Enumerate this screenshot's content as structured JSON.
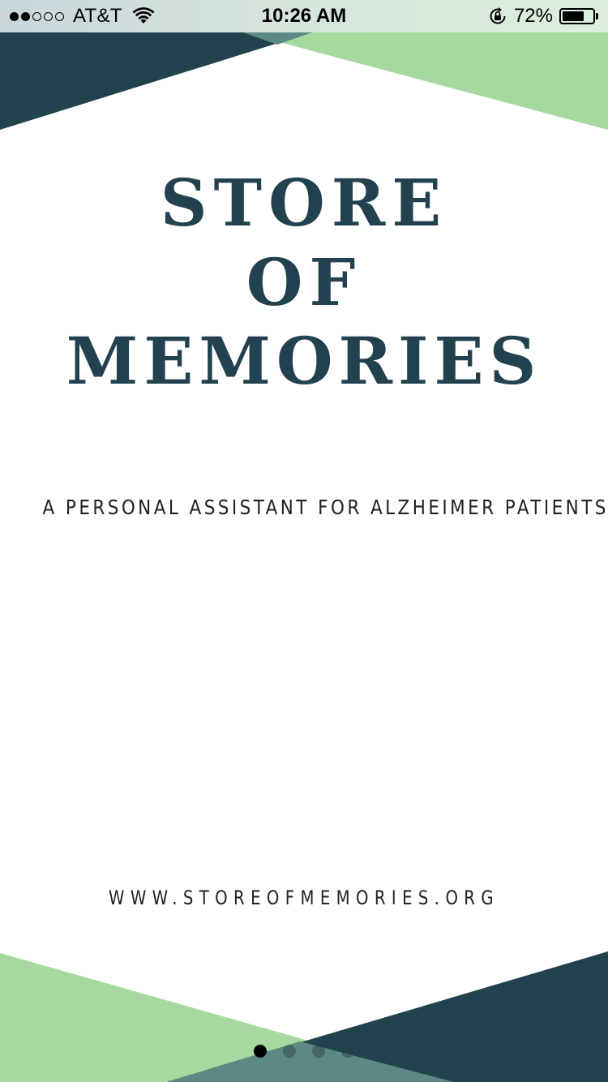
{
  "status_bar": {
    "carrier": "AT&T",
    "signal_strength": 2,
    "signal_max": 5,
    "time": "10:26 AM",
    "battery_percent": "72%",
    "battery_level": 0.72,
    "icons": [
      "wifi-icon",
      "rotation-lock-icon",
      "battery-icon"
    ]
  },
  "splash": {
    "title_line1": "STORE",
    "title_line2": "OF",
    "title_line3": "MEMORIES",
    "tagline": "A PERSONAL ASSISTANT FOR ALZHEIMER PATIENTS",
    "website": "WWW.STOREOFMEMORIES.ORG"
  },
  "pagination": {
    "page_count": 4,
    "current_page": 1
  },
  "colors": {
    "navy": "#23424f",
    "green": "#a6d8a0",
    "text_dark": "#222222"
  }
}
